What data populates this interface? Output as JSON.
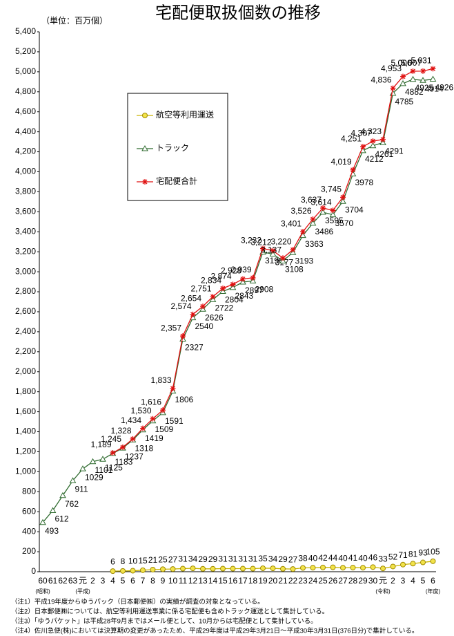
{
  "chart_data": {
    "type": "line",
    "title": "宅配便取扱個数の推移",
    "unit": "（単位：百万個）",
    "categories": [
      "60",
      "61",
      "62",
      "63",
      "元",
      "2",
      "3",
      "4",
      "5",
      "6",
      "7",
      "8",
      "9",
      "10",
      "11",
      "12",
      "13",
      "14",
      "15",
      "16",
      "17",
      "18",
      "19",
      "20",
      "21",
      "22",
      "23",
      "24",
      "25",
      "26",
      "27",
      "28",
      "29",
      "30",
      "元",
      "2",
      "3",
      "4",
      "5",
      "6"
    ],
    "x_sublabels": [
      "(昭和)",
      null,
      null,
      null,
      "(平成)",
      null,
      null,
      null,
      null,
      null,
      null,
      null,
      null,
      null,
      null,
      null,
      null,
      null,
      null,
      null,
      null,
      null,
      null,
      null,
      null,
      null,
      null,
      null,
      null,
      null,
      null,
      null,
      null,
      null,
      "(令和)",
      null,
      null,
      null,
      null,
      "(年度)"
    ],
    "series": [
      {
        "name": "航空等利用運送",
        "color": "#f2e34a",
        "marker": "circle",
        "values": [
          null,
          null,
          null,
          null,
          null,
          null,
          null,
          6,
          8,
          10,
          15,
          21,
          25,
          27,
          31,
          34,
          29,
          29,
          31,
          31,
          31,
          31,
          35,
          34,
          29,
          27,
          38,
          40,
          42,
          44,
          40,
          41,
          40,
          46,
          33,
          52,
          71,
          81,
          93,
          105
        ]
      },
      {
        "name": "トラック",
        "color": "#2f6b2f",
        "marker": "triangle",
        "values": [
          493,
          612,
          762,
          911,
          1029,
          1101,
          1125,
          1183,
          1237,
          1318,
          1419,
          1509,
          1591,
          1806,
          2327,
          2540,
          2626,
          2722,
          2804,
          2843,
          2897,
          2908,
          3196,
          3177,
          3108,
          3193,
          3363,
          3486,
          3595,
          3570,
          3704,
          3978,
          4212,
          4261,
          4291,
          4785,
          4882,
          4925,
          4914,
          4926
        ]
      },
      {
        "name": "宅配便合計",
        "color": "#e01010",
        "marker": "star",
        "values": [
          null,
          null,
          null,
          null,
          null,
          null,
          null,
          1189,
          1245,
          1328,
          1434,
          1530,
          1616,
          1833,
          2357,
          2574,
          2654,
          2751,
          2834,
          2874,
          2928,
          2939,
          3232,
          3212,
          3137,
          3220,
          3401,
          3526,
          3637,
          3614,
          3745,
          4019,
          4251,
          4307,
          4323,
          4836,
          4953,
          5006,
          5007,
          5031
        ],
        "value_labels": [
          null,
          null,
          null,
          null,
          null,
          null,
          null,
          "1,189",
          "1,245",
          "1,328",
          "1,434",
          "1,530",
          "1,616",
          "1,833",
          "2,357",
          "2,574",
          "2,654",
          "2,751",
          "2,834",
          "2,874",
          "2,928",
          "2,939",
          "3,232",
          "3,212",
          "3,137",
          "3,220",
          "3,401",
          "3,526",
          "3,637",
          "3,614",
          "3,745",
          "4,019",
          "4,251",
          "4,307",
          "4,323",
          "4,836",
          "4,953",
          "5,006",
          "5,007",
          "5,031"
        ]
      }
    ],
    "ylim": [
      0,
      5400
    ],
    "yticks": [
      0,
      200,
      400,
      600,
      800,
      {
        "value": 1000,
        "label": "1,000"
      },
      {
        "value": 1200,
        "label": "1,200"
      },
      {
        "value": 1400,
        "label": "1,400"
      },
      {
        "value": 1600,
        "label": "1,600"
      },
      {
        "value": 1800,
        "label": "1,800"
      },
      {
        "value": 2000,
        "label": "2,000"
      },
      {
        "value": 2200,
        "label": "2,200"
      },
      {
        "value": 2400,
        "label": "2,400"
      },
      {
        "value": 2600,
        "label": "2,600"
      },
      {
        "value": 2800,
        "label": "2,800"
      },
      {
        "value": 3000,
        "label": "3,000"
      },
      {
        "value": 3200,
        "label": "3,200"
      },
      {
        "value": 3400,
        "label": "3,400"
      },
      {
        "value": 3600,
        "label": "3,600"
      },
      {
        "value": 3800,
        "label": "3,800"
      },
      {
        "value": 4000,
        "label": "4,000"
      },
      {
        "value": 4200,
        "label": "4,200"
      },
      {
        "value": 4400,
        "label": "4,400"
      },
      {
        "value": 4600,
        "label": "4,600"
      },
      {
        "value": 4800,
        "label": "4,800"
      },
      {
        "value": 5000,
        "label": "5,000"
      },
      {
        "value": 5200,
        "label": "5,200"
      },
      {
        "value": 5400,
        "label": "5,400"
      }
    ],
    "grid": false,
    "legend": "upper-left",
    "notes": [
      "（注1）平成19年度からゆうパック（日本郵便㈱）の実績が調査の対象となっている。",
      "（注2）日本郵便㈱については、航空等利用運送事業に係る宅配便も含めトラック運送として集計している。",
      "（注3）「ゆうパケット」は平成28年9月まではメール便として、10月からは宅配便として集計している。",
      "（注4）佐川急便(株)においては決算期の変更があったため、平成29年度は平成29年3月21日～平成30年3月31日(376日分)で集計している。"
    ]
  }
}
